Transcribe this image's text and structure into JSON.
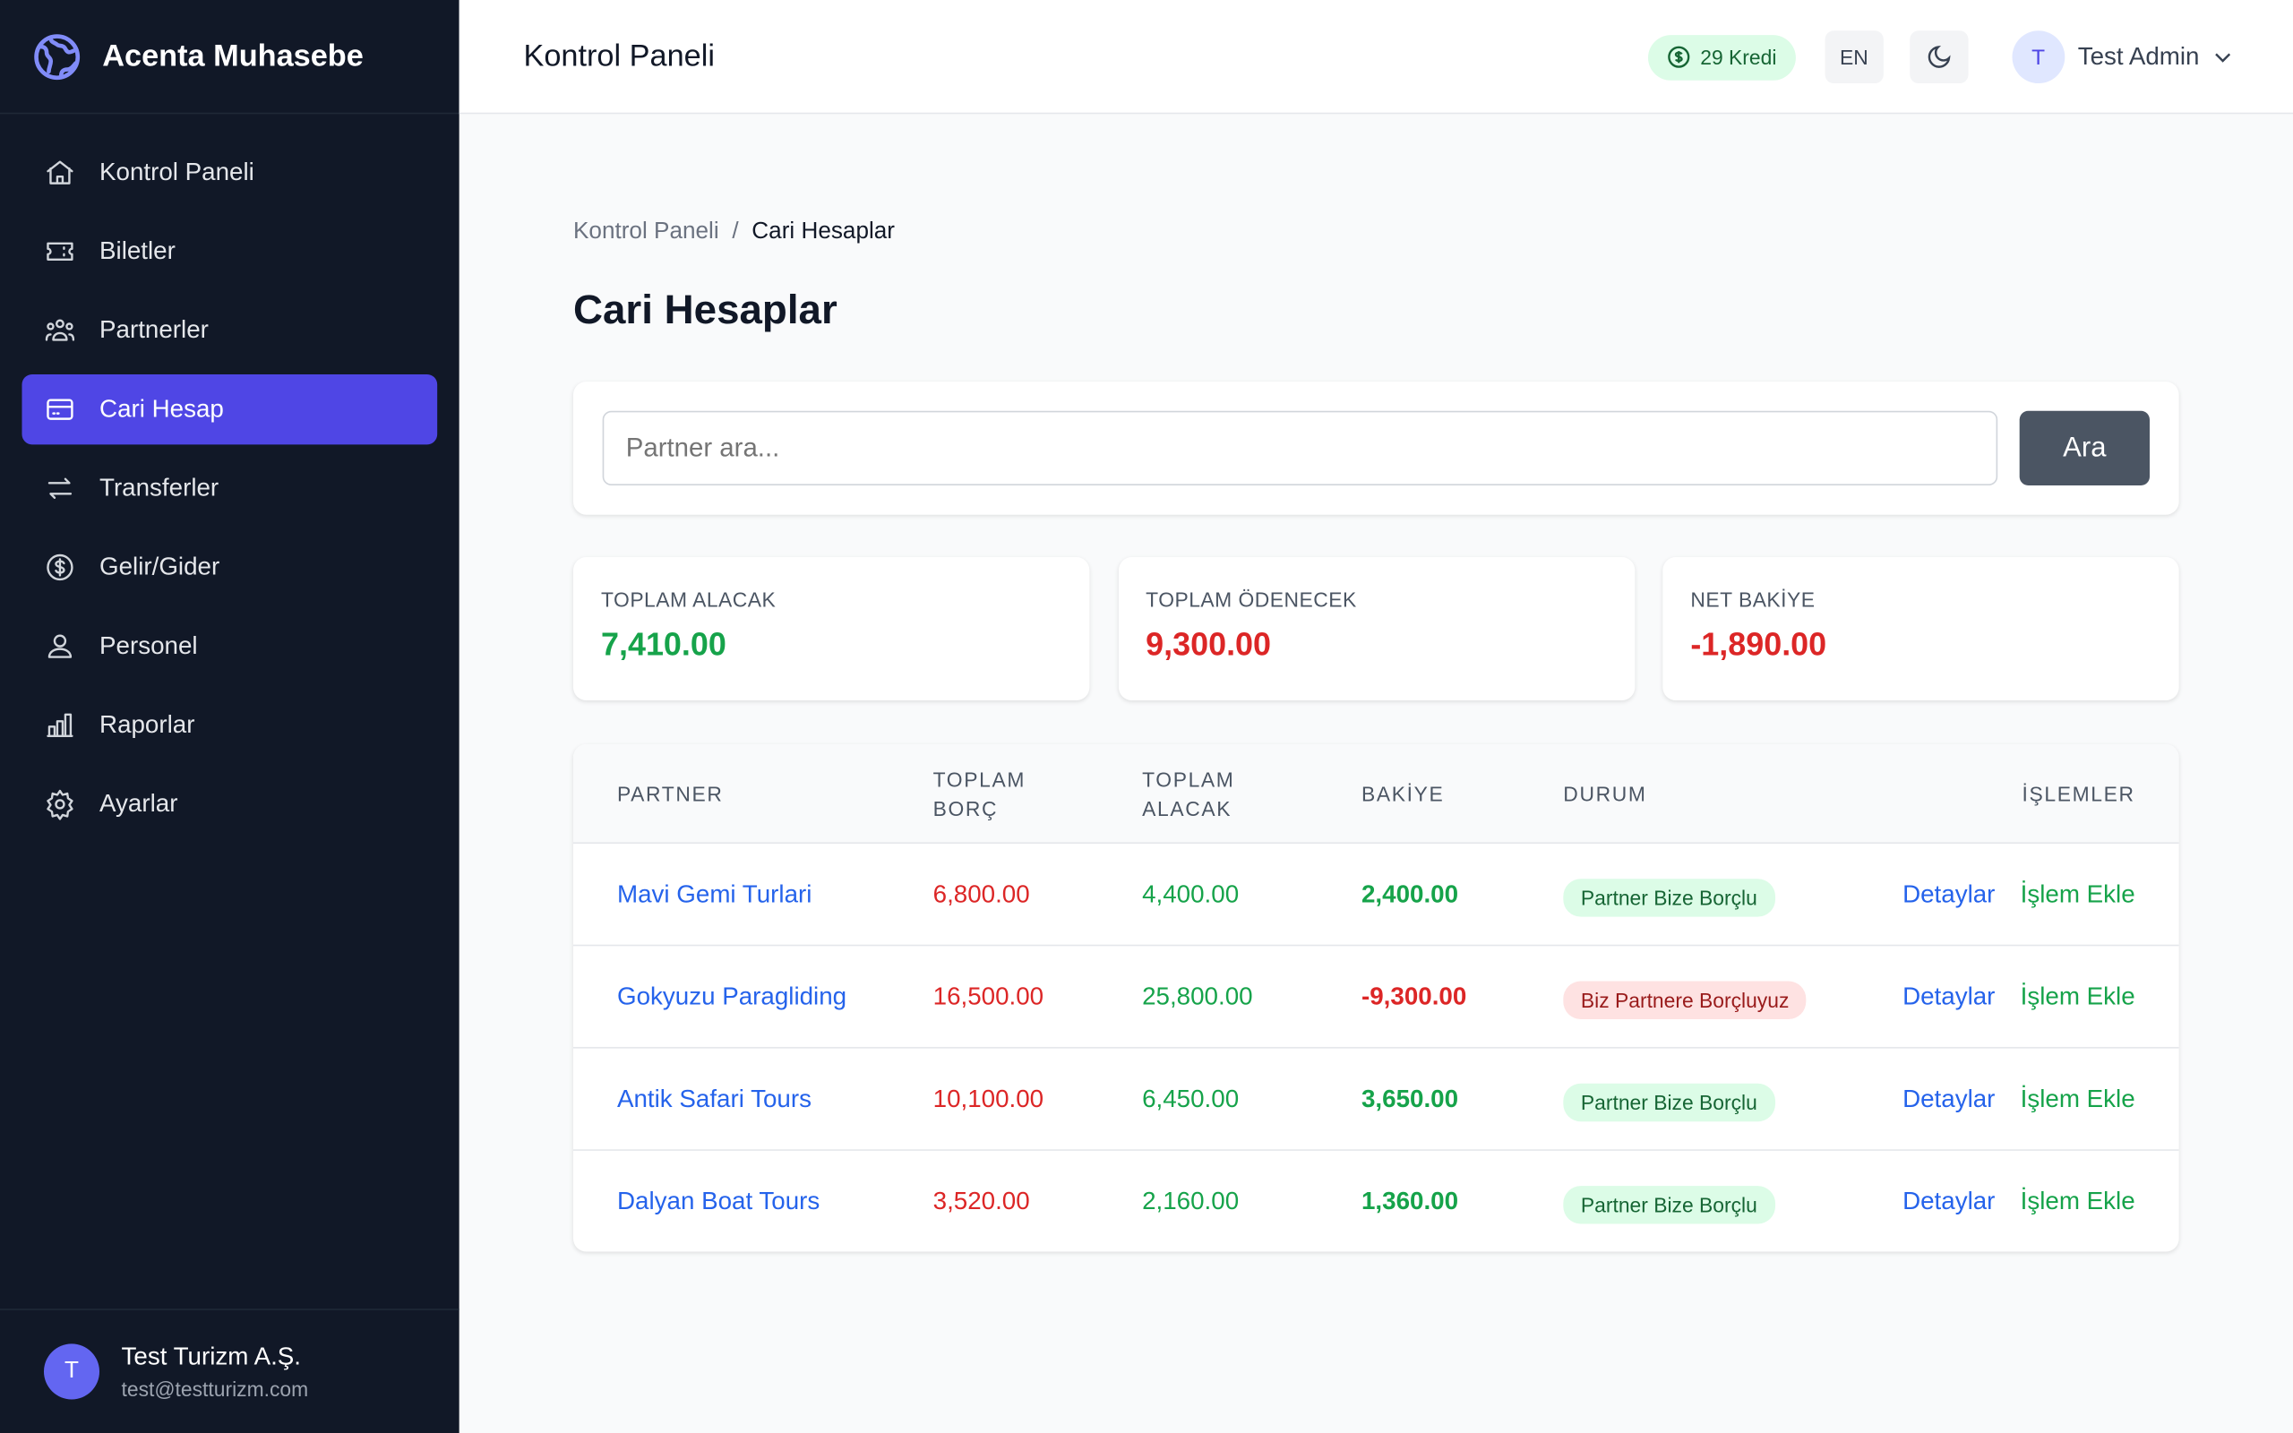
{
  "app": {
    "name": "Acenta Muhasebe",
    "logo_icon": "globe-icon"
  },
  "sidebar": {
    "items": [
      {
        "label": "Kontrol Paneli",
        "icon": "home-icon"
      },
      {
        "label": "Biletler",
        "icon": "ticket-icon"
      },
      {
        "label": "Partnerler",
        "icon": "users-icon"
      },
      {
        "label": "Cari Hesap",
        "icon": "credit-card-icon",
        "active": true
      },
      {
        "label": "Transferler",
        "icon": "arrows-icon"
      },
      {
        "label": "Gelir/Gider",
        "icon": "dollar-icon"
      },
      {
        "label": "Personel",
        "icon": "user-icon"
      },
      {
        "label": "Raporlar",
        "icon": "chart-icon"
      },
      {
        "label": "Ayarlar",
        "icon": "gear-icon"
      }
    ],
    "user": {
      "initial": "T",
      "name": "Test Turizm A.Ş.",
      "email": "test@testturizm.com"
    }
  },
  "header": {
    "title": "Kontrol Paneli",
    "credit": "29 Kredi",
    "lang": "EN",
    "user_initial": "T",
    "user_name": "Test Admin"
  },
  "breadcrumb": {
    "home": "Kontrol Paneli",
    "sep": "/",
    "current": "Cari Hesaplar"
  },
  "page_title": "Cari Hesaplar",
  "search": {
    "placeholder": "Partner ara...",
    "button": "Ara"
  },
  "stats": [
    {
      "label": "TOPLAM ALACAK",
      "value": "7,410.00",
      "color": "#16a34a"
    },
    {
      "label": "TOPLAM ÖDENECEK",
      "value": "9,300.00",
      "color": "#dc2626"
    },
    {
      "label": "NET BAKİYE",
      "value": "-1,890.00",
      "color": "#dc2626"
    }
  ],
  "table": {
    "headers": [
      "PARTNER",
      "TOPLAM BORÇ",
      "TOPLAM ALACAK",
      "BAKİYE",
      "DURUM",
      "İŞLEMLER"
    ],
    "rows": [
      {
        "partner": "Mavi Gemi Turlari",
        "borc": "6,800.00",
        "alacak": "4,400.00",
        "bakiye": "2,400.00",
        "durum": "Partner Bize Borçlu",
        "positive": true,
        "detail": "Detaylar",
        "add": "İşlem Ekle"
      },
      {
        "partner": "Gokyuzu Paragliding",
        "borc": "16,500.00",
        "alacak": "25,800.00",
        "bakiye": "-9,300.00",
        "durum": "Biz Partnere Borçluyuz",
        "positive": false,
        "detail": "Detaylar",
        "add": "İşlem Ekle"
      },
      {
        "partner": "Antik Safari Tours",
        "borc": "10,100.00",
        "alacak": "6,450.00",
        "bakiye": "3,650.00",
        "durum": "Partner Bize Borçlu",
        "positive": true,
        "detail": "Detaylar",
        "add": "İşlem Ekle"
      },
      {
        "partner": "Dalyan Boat Tours",
        "borc": "3,520.00",
        "alacak": "2,160.00",
        "bakiye": "1,360.00",
        "durum": "Partner Bize Borçlu",
        "positive": true,
        "detail": "Detaylar",
        "add": "İşlem Ekle"
      }
    ]
  }
}
